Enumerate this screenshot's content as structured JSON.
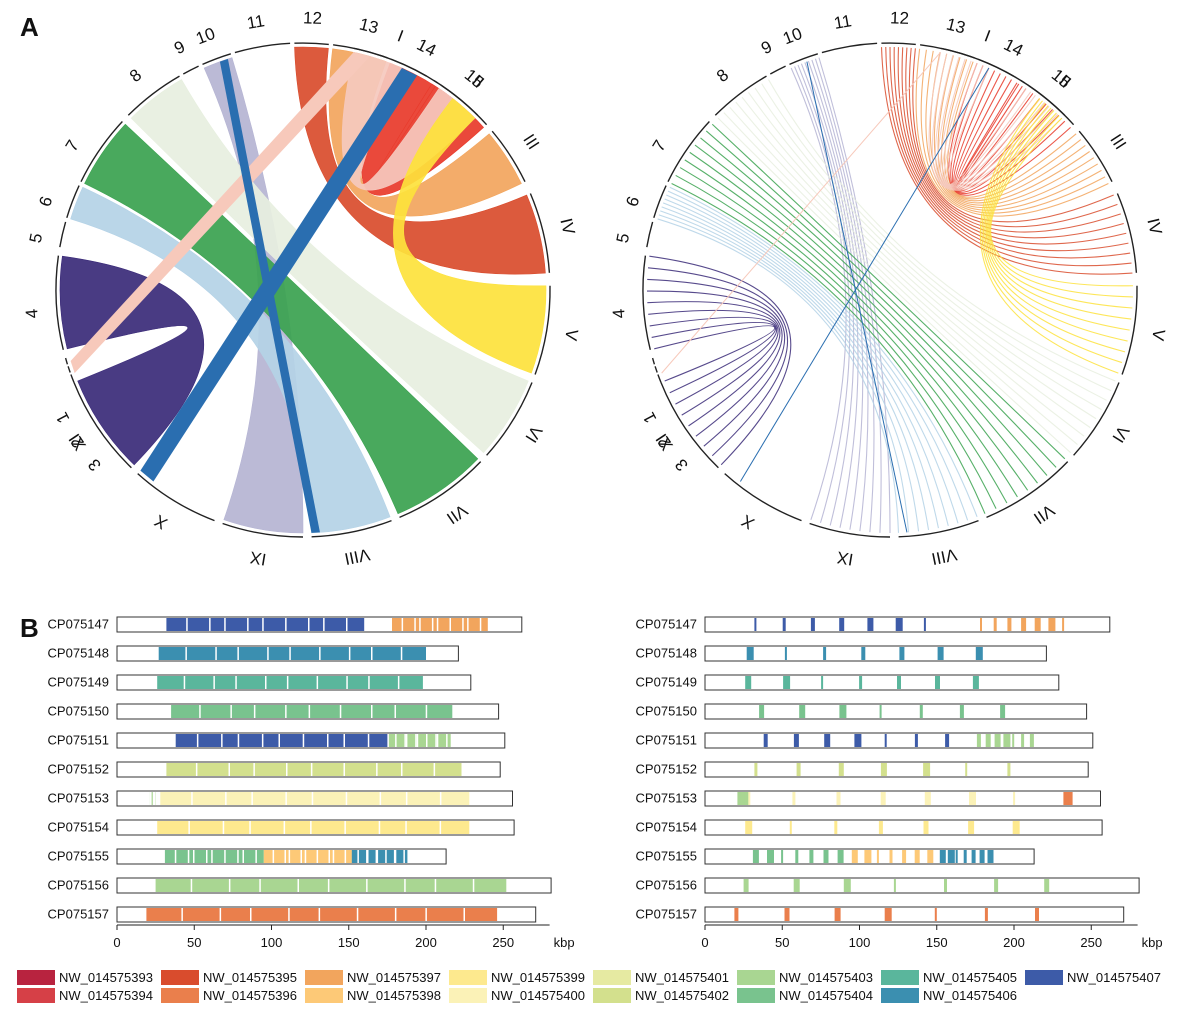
{
  "panels": {
    "a": "A",
    "b": "B"
  },
  "circos": {
    "left_labels": [
      "1",
      "2",
      "3",
      "4",
      "5",
      "6",
      "7",
      "8",
      "9",
      "10",
      "11",
      "12",
      "13",
      "14",
      "15"
    ],
    "right_labels": [
      "I",
      "II",
      "III",
      "IV",
      "V",
      "VI",
      "VII",
      "VIII",
      "IX",
      "X",
      "XI"
    ]
  },
  "tracks": [
    "CP075147",
    "CP075148",
    "CP075149",
    "CP075150",
    "CP075151",
    "CP075152",
    "CP075153",
    "CP075154",
    "CP075155",
    "CP075156",
    "CP075157"
  ],
  "track_lengths_kbp": [
    262,
    221,
    229,
    247,
    251,
    248,
    256,
    257,
    213,
    281,
    271
  ],
  "axis": {
    "ticks": [
      "0",
      "50",
      "100",
      "150",
      "200",
      "250"
    ],
    "unit": "kbp",
    "range": [
      0,
      280
    ]
  },
  "legend": [
    {
      "name": "NW_014575393",
      "color": "#b8233f"
    },
    {
      "name": "NW_014575394",
      "color": "#d64047"
    },
    {
      "name": "NW_014575395",
      "color": "#d94c2d"
    },
    {
      "name": "NW_014575396",
      "color": "#ea7f4c"
    },
    {
      "name": "NW_014575397",
      "color": "#f2a55d"
    },
    {
      "name": "NW_014575398",
      "color": "#fdc977"
    },
    {
      "name": "NW_014575399",
      "color": "#fde98e"
    },
    {
      "name": "NW_014575400",
      "color": "#fbf2b7"
    },
    {
      "name": "NW_014575401",
      "color": "#e6eaa2"
    },
    {
      "name": "NW_014575402",
      "color": "#d3e08d"
    },
    {
      "name": "NW_014575403",
      "color": "#a9d692"
    },
    {
      "name": "NW_014575404",
      "color": "#79c38e"
    },
    {
      "name": "NW_014575405",
      "color": "#5ab69c"
    },
    {
      "name": "NW_014575406",
      "color": "#3b8fb0"
    },
    {
      "name": "NW_014575407",
      "color": "#3d5ba8"
    }
  ],
  "chart_data": [
    {
      "type": "table",
      "title": "",
      "description_of": "B left: syntenic blocks along CP075147–CP075157",
      "xlabel": "kbp",
      "xlim": [
        0,
        280
      ],
      "rows": [
        {
          "track": "CP075147",
          "blocks": [
            {
              "from": 32,
              "to": 160,
              "color_of": "NW_014575407"
            },
            {
              "from": 178,
              "to": 240,
              "color_of": "NW_014575397"
            }
          ]
        },
        {
          "track": "CP075148",
          "blocks": [
            {
              "from": 27,
              "to": 200,
              "color_of": "NW_014575406"
            }
          ]
        },
        {
          "track": "CP075149",
          "blocks": [
            {
              "from": 26,
              "to": 198,
              "color_of": "NW_014575405"
            }
          ]
        },
        {
          "track": "CP075150",
          "blocks": [
            {
              "from": 35,
              "to": 217,
              "color_of": "NW_014575404"
            }
          ]
        },
        {
          "track": "CP075151",
          "blocks": [
            {
              "from": 38,
              "to": 175,
              "color_of": "NW_014575407"
            },
            {
              "from": 176,
              "to": 216,
              "color_of": "NW_014575403"
            }
          ]
        },
        {
          "track": "CP075152",
          "blocks": [
            {
              "from": 32,
              "to": 223,
              "color_of": "NW_014575402"
            }
          ]
        },
        {
          "track": "CP075153",
          "blocks": [
            {
              "from": 21,
              "to": 25,
              "color_of": "NW_014575403"
            },
            {
              "from": 28,
              "to": 228,
              "color_of": "NW_014575400"
            },
            {
              "from": 232,
              "to": 234,
              "color_of": "NW_014575396"
            }
          ]
        },
        {
          "track": "CP075154",
          "blocks": [
            {
              "from": 26,
              "to": 228,
              "color_of": "NW_014575399"
            }
          ]
        },
        {
          "track": "CP075155",
          "blocks": [
            {
              "from": 31,
              "to": 95,
              "color_of": "NW_014575404"
            },
            {
              "from": 95,
              "to": 152,
              "color_of": "NW_014575398"
            },
            {
              "from": 152,
              "to": 188,
              "color_of": "NW_014575406"
            }
          ]
        },
        {
          "track": "CP075156",
          "blocks": [
            {
              "from": 25,
              "to": 252,
              "color_of": "NW_014575403"
            }
          ]
        },
        {
          "track": "CP075157",
          "blocks": [
            {
              "from": 19,
              "to": 246,
              "color_of": "NW_014575396"
            }
          ]
        }
      ]
    }
  ]
}
